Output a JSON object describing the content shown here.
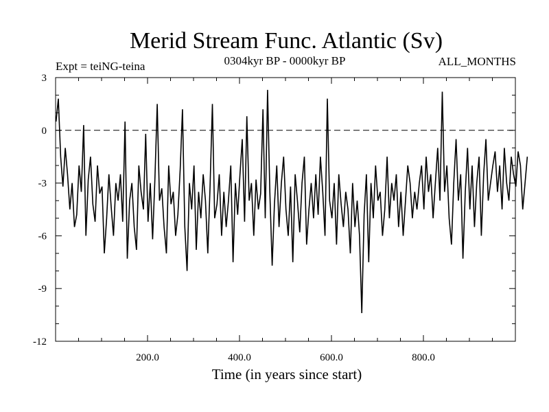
{
  "chart_data": {
    "type": "line",
    "title": "Merid Stream Func. Atlantic (Sv)",
    "subtitle_left": "Expt = teiNG-teina",
    "subtitle_center": "0304kyr BP - 0000kyr BP",
    "subtitle_right": "ALL_MONTHS",
    "xlabel": "Time (in years since start)",
    "ylabel": "",
    "xlim": [
      0,
      1000
    ],
    "ylim": [
      -12,
      3
    ],
    "y_ticks": [
      3,
      0,
      -3,
      -6,
      -9,
      -12
    ],
    "y_tick_labels": [
      "3",
      "0",
      "-3",
      "-6",
      "-9",
      "-12"
    ],
    "x_ticks": [
      200,
      400,
      600,
      800
    ],
    "x_tick_labels": [
      "200.0",
      "400.0",
      "600.0",
      "800.0"
    ],
    "reference_line": 0,
    "series": [
      {
        "name": "Merid Stream Func. Atlantic",
        "x_start": 1,
        "x_step": 5,
        "values": [
          0.5,
          1.8,
          -1.5,
          -3.2,
          -1.0,
          -2.5,
          -4.5,
          -3.0,
          -5.5,
          -4.8,
          -2.0,
          -3.5,
          0.3,
          -6.0,
          -2.8,
          -1.5,
          -4.2,
          -5.2,
          -2.0,
          -3.6,
          -3.2,
          -7.0,
          -5.0,
          -2.5,
          -4.4,
          -6.0,
          -3.0,
          -4.0,
          -2.5,
          -5.2,
          0.5,
          -7.3,
          -4.0,
          -3.0,
          -5.5,
          -6.8,
          -2.0,
          -3.5,
          -4.5,
          -0.2,
          -5.2,
          -3.0,
          -6.2,
          -2.8,
          1.5,
          -4.0,
          -3.3,
          -5.5,
          -7.0,
          -2.0,
          -4.2,
          -3.5,
          -6.0,
          -4.8,
          -2.2,
          1.2,
          -5.5,
          -8.0,
          -3.0,
          -4.5,
          -2.0,
          -6.8,
          -3.5,
          -5.0,
          -2.5,
          -4.0,
          -7.0,
          -3.2,
          1.5,
          -5.0,
          -4.2,
          -2.5,
          -6.0,
          -3.5,
          -5.5,
          -4.0,
          -2.0,
          -7.5,
          -3.0,
          -4.8,
          -2.5,
          -0.5,
          -5.2,
          0.8,
          -4.0,
          -3.0,
          -6.0,
          -2.8,
          -4.5,
          -3.6,
          1.2,
          -5.0,
          2.3,
          -3.5,
          -7.7,
          -4.2,
          -2.0,
          -5.5,
          -3.0,
          -1.5,
          -4.5,
          -6.0,
          -3.2,
          -7.5,
          -2.5,
          -4.0,
          -5.8,
          -3.0,
          -1.5,
          -6.5,
          -4.5,
          -3.0,
          -5.0,
          -2.5,
          -4.8,
          -1.5,
          -3.5,
          -6.0,
          1.8,
          -4.0,
          -5.0,
          -3.0,
          -6.5,
          -2.5,
          -4.2,
          -5.5,
          -3.5,
          -4.5,
          -7.0,
          -3.0,
          -5.5,
          -4.0,
          -6.0,
          -10.4,
          -4.8,
          -2.5,
          -7.5,
          -3.0,
          -5.0,
          -2.0,
          -4.0,
          -3.5,
          -6.0,
          -4.5,
          -1.5,
          -5.0,
          -3.0,
          -4.0,
          -2.5,
          -5.5,
          -3.5,
          -6.0,
          -4.0,
          -2.0,
          -3.0,
          -5.0,
          -3.5,
          -4.5,
          -3.0,
          -2.0,
          -4.5,
          -1.5,
          -3.5,
          -2.5,
          -5.0,
          -3.0,
          -1.0,
          -4.0,
          2.2,
          -3.5,
          -2.0,
          -5.0,
          -6.5,
          -3.0,
          -0.5,
          -4.0,
          -2.5,
          -7.3,
          -3.5,
          -1.0,
          -4.5,
          -2.0,
          -5.5,
          -3.0,
          -1.5,
          -6.0,
          -2.5,
          -0.5,
          -4.0,
          -3.0,
          -2.0,
          -1.2,
          -3.5,
          -2.0,
          -4.5,
          -1.0,
          -3.0,
          -4.0,
          -1.5,
          -2.5,
          -3.2,
          -1.2,
          -2.0,
          -4.5,
          -3.0,
          -1.5
        ]
      }
    ]
  }
}
